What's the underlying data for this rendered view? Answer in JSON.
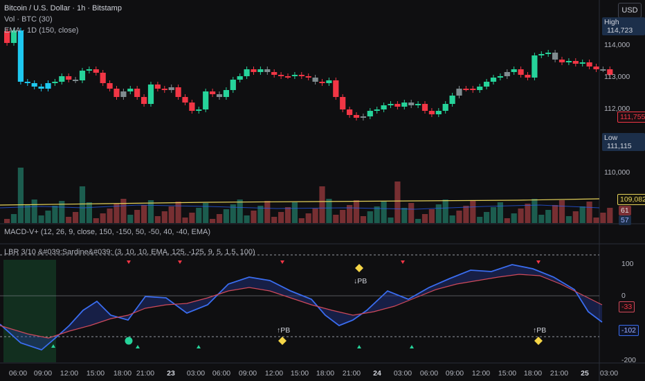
{
  "header": {
    "symbol_line": "Bitcoin / U.S. Dollar · 1h · Bitstamp",
    "vol_line": "Vol · BTC (30)",
    "ema_line": "EMA · 1D (150, close)",
    "currency_button": "USD"
  },
  "price_axis": {
    "labels": [
      "114,000",
      "113,000",
      "112,000",
      "110,000"
    ],
    "high_label": "High",
    "high_value": "114,723",
    "low_label": "Low",
    "low_value": "111,115",
    "last_price": "111,755",
    "ema_value": "109,082",
    "vol_value": "61",
    "vol_ma_value": "57"
  },
  "indicators": {
    "macd_line": "MACD-V+ (12, 26, 9, close, 150, -150, 50, -50, 40, -40, EMA)",
    "lbr_line": "LBR 3/10 &#039;Sardine&#039; (3, 10, 10, EMA, 125, -125, 9, 5, 1.5, 100)",
    "axis_labels": [
      "100",
      "0",
      "-200"
    ],
    "fast_value": "-33",
    "slow_value": "-102",
    "pb_up": "↑PB",
    "pb_down": "↓PB"
  },
  "time_axis": [
    "06:00",
    "09:00",
    "12:00",
    "15:00",
    "18:00",
    "21:00",
    "23",
    "03:00",
    "06:00",
    "09:00",
    "12:00",
    "15:00",
    "18:00",
    "21:00",
    "24",
    "03:00",
    "06:00",
    "09:00",
    "12:00",
    "15:00",
    "18:00",
    "21:00",
    "25",
    "03:00"
  ],
  "colors": {
    "bull": "#26d39a",
    "bear": "#f23645",
    "neutral": "#7f8b8f",
    "cyan": "#1ec8f0",
    "ema": "#e6d35a",
    "fast": "#3a6df0",
    "slow": "#d14a5b"
  }
}
